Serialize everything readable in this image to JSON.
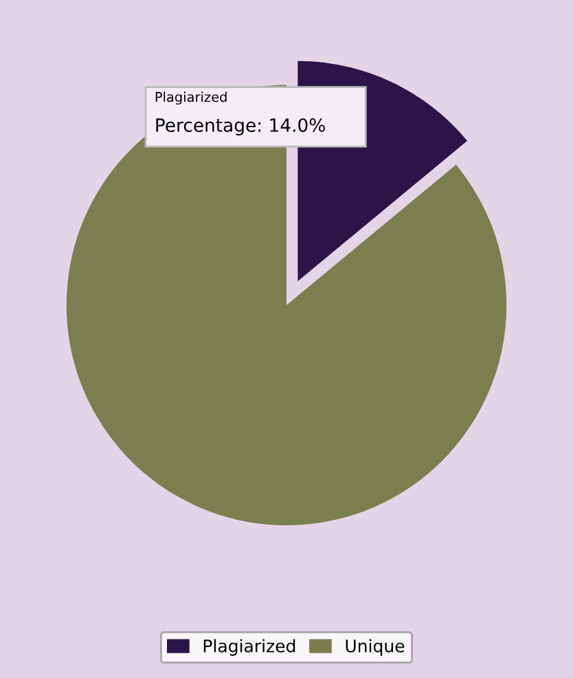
{
  "chart_data": {
    "type": "pie",
    "categories": [
      "Plagiarized",
      "Unique"
    ],
    "values": [
      14,
      86
    ],
    "colors": [
      "#2a1448",
      "#7b7f4f"
    ],
    "legend": "bottom",
    "annotations": [
      "Plagiarized",
      "Percentage: 14.0%"
    ]
  }
}
